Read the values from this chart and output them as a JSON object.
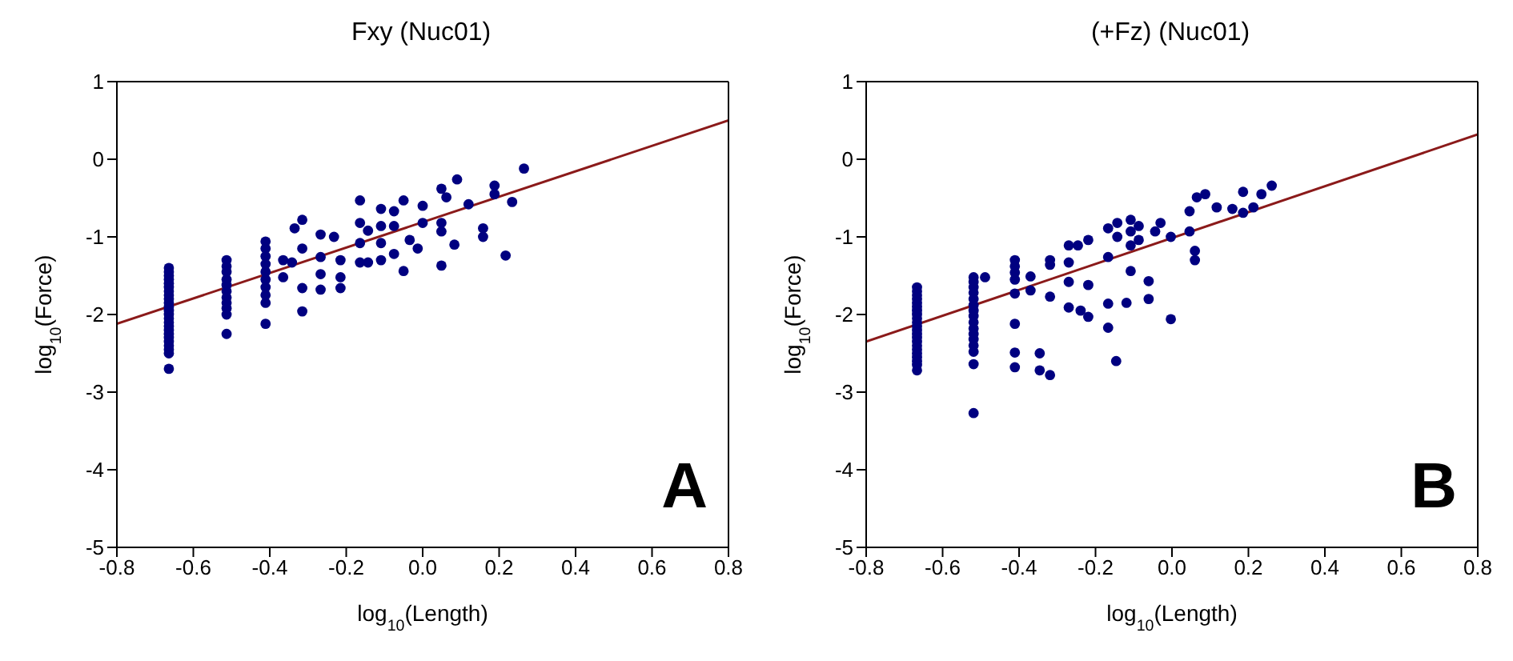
{
  "chart_data": [
    {
      "type": "scatter",
      "title": "Fxy (Nuc01)",
      "xlabel": "log$_{10}$(Length)",
      "ylabel": "log$_{10}$(Force)",
      "annotations": [
        "A"
      ],
      "xlim": [
        -0.8,
        0.8
      ],
      "xticks": [
        -0.8,
        -0.6,
        -0.4,
        -0.2,
        {
          "value": 0,
          "label": "0.0"
        },
        0.2,
        0.4,
        0.6,
        0.8
      ],
      "ylim": [
        -5,
        1
      ],
      "yticks": [
        -5,
        -4,
        -3,
        -2,
        -1,
        0,
        1
      ],
      "series": [
        {
          "type": "scatter",
          "marker": "circle",
          "color": "#000080",
          "x": [
            -0.664,
            -0.664,
            -0.664,
            -0.664,
            -0.664,
            -0.664,
            -0.664,
            -0.664,
            -0.664,
            -0.664,
            -0.664,
            -0.664,
            -0.664,
            -0.664,
            -0.664,
            -0.664,
            -0.664,
            -0.664,
            -0.664,
            -0.664,
            -0.664,
            -0.664,
            -0.664,
            -0.664,
            -0.513,
            -0.513,
            -0.513,
            -0.513,
            -0.513,
            -0.513,
            -0.513,
            -0.513,
            -0.513,
            -0.513,
            -0.513,
            -0.411,
            -0.411,
            -0.411,
            -0.411,
            -0.411,
            -0.411,
            -0.411,
            -0.411,
            -0.411,
            -0.411,
            -0.365,
            -0.365,
            -0.342,
            -0.335,
            -0.315,
            -0.315,
            -0.315,
            -0.315,
            -0.267,
            -0.267,
            -0.267,
            -0.267,
            -0.232,
            -0.215,
            -0.215,
            -0.215,
            -0.164,
            -0.164,
            -0.164,
            -0.164,
            -0.143,
            -0.143,
            -0.109,
            -0.109,
            -0.109,
            -0.109,
            -0.075,
            -0.075,
            -0.075,
            -0.05,
            -0.05,
            -0.034,
            -0.013,
            0.0,
            0.0,
            0.049,
            0.049,
            0.049,
            0.049,
            0.062,
            0.083,
            0.09,
            0.12,
            0.158,
            0.158,
            0.188,
            0.188,
            0.217,
            0.234,
            0.265
          ],
          "values": [
            -1.4,
            -1.45,
            -1.5,
            -1.55,
            -1.6,
            -1.65,
            -1.7,
            -1.75,
            -1.8,
            -1.85,
            -1.9,
            -1.95,
            -2.0,
            -2.05,
            -2.1,
            -2.15,
            -2.2,
            -2.25,
            -2.3,
            -2.35,
            -2.4,
            -2.45,
            -2.5,
            -2.7,
            -1.3,
            -1.38,
            -1.45,
            -1.55,
            -1.62,
            -1.7,
            -1.78,
            -1.85,
            -1.92,
            -2.0,
            -2.25,
            -1.06,
            -1.15,
            -1.25,
            -1.35,
            -1.45,
            -1.55,
            -1.65,
            -1.75,
            -1.85,
            -2.12,
            -1.52,
            -1.3,
            -1.33,
            -0.89,
            -0.78,
            -1.15,
            -1.66,
            -1.96,
            -0.97,
            -1.26,
            -1.48,
            -1.68,
            -1.0,
            -1.3,
            -1.52,
            -1.66,
            -0.53,
            -0.82,
            -1.08,
            -1.33,
            -0.92,
            -1.33,
            -0.64,
            -0.86,
            -1.08,
            -1.3,
            -0.67,
            -0.86,
            -1.22,
            -0.53,
            -1.44,
            -1.04,
            -1.15,
            -0.6,
            -0.82,
            -0.38,
            -0.82,
            -0.93,
            -1.37,
            -0.49,
            -1.1,
            -0.26,
            -0.58,
            -0.89,
            -1.0,
            -0.34,
            -0.45,
            -1.24,
            -0.55,
            -0.12
          ]
        },
        {
          "type": "line",
          "color": "#8b1a1a",
          "x": [
            -0.8,
            0.8
          ],
          "values": [
            -2.12,
            0.5
          ]
        }
      ]
    },
    {
      "type": "scatter",
      "title": "(+Fz) (Nuc01)",
      "xlabel": "log$_{10}$(Length)",
      "ylabel": "log$_{10}$(Force)",
      "annotations": [
        "B"
      ],
      "xlim": [
        -0.8,
        0.8
      ],
      "xticks": [
        -0.8,
        -0.6,
        -0.4,
        -0.2,
        {
          "value": 0,
          "label": "0.0"
        },
        0.2,
        0.4,
        0.6,
        0.8
      ],
      "ylim": [
        -5,
        1
      ],
      "yticks": [
        -5,
        -4,
        -3,
        -2,
        -1,
        0,
        1
      ],
      "series": [
        {
          "type": "scatter",
          "marker": "circle",
          "color": "#000080",
          "x": [
            -0.667,
            -0.667,
            -0.667,
            -0.667,
            -0.667,
            -0.667,
            -0.667,
            -0.667,
            -0.667,
            -0.667,
            -0.667,
            -0.667,
            -0.667,
            -0.667,
            -0.667,
            -0.667,
            -0.667,
            -0.667,
            -0.667,
            -0.667,
            -0.667,
            -0.667,
            -0.519,
            -0.519,
            -0.519,
            -0.519,
            -0.519,
            -0.519,
            -0.519,
            -0.519,
            -0.519,
            -0.519,
            -0.519,
            -0.519,
            -0.519,
            -0.519,
            -0.519,
            -0.519,
            -0.489,
            -0.411,
            -0.411,
            -0.411,
            -0.411,
            -0.411,
            -0.411,
            -0.411,
            -0.411,
            -0.37,
            -0.37,
            -0.346,
            -0.346,
            -0.319,
            -0.319,
            -0.319,
            -0.319,
            -0.27,
            -0.27,
            -0.27,
            -0.27,
            -0.246,
            -0.239,
            -0.219,
            -0.219,
            -0.219,
            -0.167,
            -0.167,
            -0.167,
            -0.167,
            -0.146,
            -0.143,
            -0.143,
            -0.119,
            -0.108,
            -0.108,
            -0.108,
            -0.108,
            -0.087,
            -0.087,
            -0.061,
            -0.061,
            -0.044,
            -0.03,
            -0.003,
            -0.003,
            0.046,
            0.046,
            0.06,
            0.06,
            0.065,
            0.087,
            0.117,
            0.158,
            0.186,
            0.186,
            0.213,
            0.234,
            0.261
          ],
          "values": [
            -1.65,
            -1.7,
            -1.75,
            -1.8,
            -1.85,
            -1.9,
            -1.95,
            -2.0,
            -2.05,
            -2.1,
            -2.15,
            -2.2,
            -2.25,
            -2.3,
            -2.35,
            -2.4,
            -2.45,
            -2.5,
            -2.55,
            -2.6,
            -2.65,
            -2.72,
            -1.52,
            -1.58,
            -1.65,
            -1.72,
            -1.8,
            -1.88,
            -1.95,
            -2.02,
            -2.1,
            -2.18,
            -2.25,
            -2.32,
            -2.4,
            -2.48,
            -2.64,
            -3.27,
            -1.52,
            -1.3,
            -1.38,
            -1.46,
            -1.55,
            -1.73,
            -2.12,
            -2.49,
            -2.68,
            -1.51,
            -1.69,
            -2.5,
            -2.72,
            -1.3,
            -1.36,
            -1.77,
            -2.78,
            -1.11,
            -1.33,
            -1.58,
            -1.91,
            -1.11,
            -1.95,
            -1.04,
            -1.62,
            -2.03,
            -0.89,
            -1.26,
            -1.86,
            -2.17,
            -2.6,
            -0.82,
            -1.0,
            -1.85,
            -0.78,
            -0.93,
            -1.11,
            -1.44,
            -0.86,
            -1.04,
            -1.57,
            -1.8,
            -0.93,
            -0.82,
            -1.0,
            -2.06,
            -0.67,
            -0.93,
            -1.18,
            -1.3,
            -0.49,
            -0.45,
            -0.62,
            -0.64,
            -0.42,
            -0.69,
            -0.62,
            -0.45,
            -0.34
          ]
        },
        {
          "type": "line",
          "color": "#8b1a1a",
          "x": [
            -0.8,
            0.8
          ],
          "values": [
            -2.35,
            0.32
          ]
        }
      ]
    }
  ]
}
